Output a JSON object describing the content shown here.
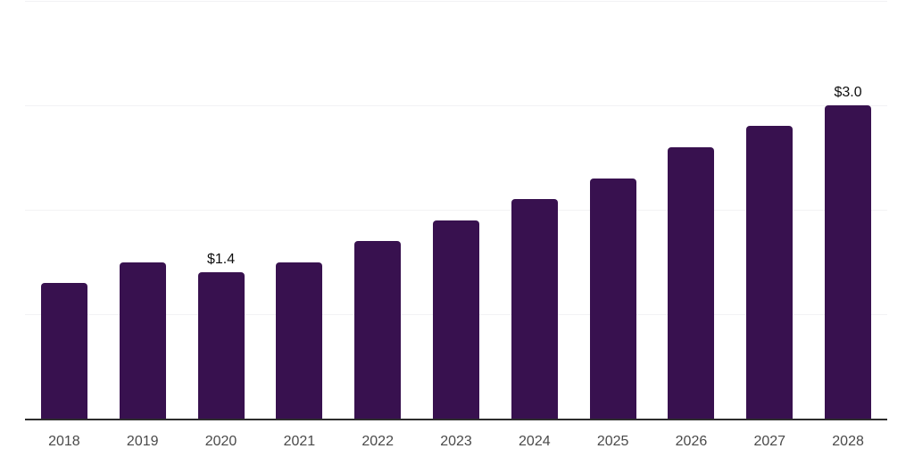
{
  "chart_data": {
    "type": "bar",
    "title": "",
    "xlabel": "",
    "ylabel": "",
    "categories": [
      "2018",
      "2019",
      "2020",
      "2021",
      "2022",
      "2023",
      "2024",
      "2025",
      "2026",
      "2027",
      "2028"
    ],
    "values": [
      1.3,
      1.5,
      1.4,
      1.5,
      1.7,
      1.9,
      2.1,
      2.3,
      2.6,
      2.8,
      3.0
    ],
    "data_labels": [
      {
        "category": "2020",
        "text": "$1.4"
      },
      {
        "category": "2028",
        "text": "$3.0"
      }
    ],
    "ylim": [
      0,
      4
    ],
    "gridline_values": [
      1,
      2,
      3,
      4
    ],
    "grid": "horizontal",
    "legend": "none",
    "y_axis_tick_labels": "none",
    "colors": {
      "bar": "#38114f",
      "axis_line": "#2e2e2e",
      "gridline": "#f2f2f4",
      "tick_label": "#4a4a4a",
      "data_label": "#0f0f0f",
      "background": "#ffffff"
    }
  }
}
